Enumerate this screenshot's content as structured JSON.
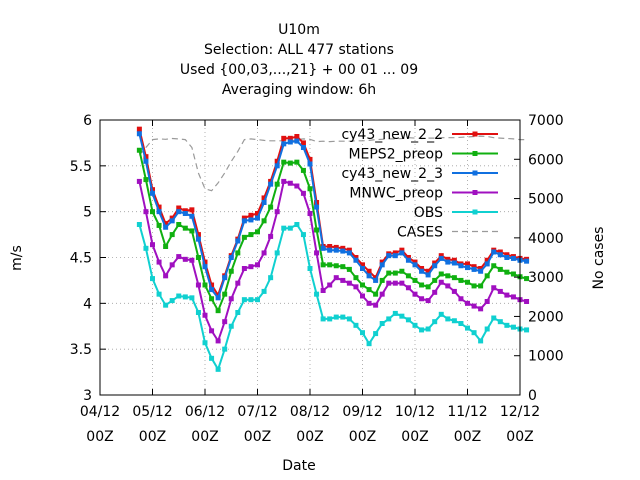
{
  "chart_data": {
    "type": "line",
    "title_lines": [
      "U10m",
      "Selection: ALL    477 stations",
      "Used {00,03,...,21} + 00 01 ... 09",
      "Averaging window:  6h"
    ],
    "xlabel": "Date",
    "ylabel": "m/s",
    "y2label": "No cases",
    "ylim": [
      3,
      6
    ],
    "y2lim": [
      0,
      7000
    ],
    "y_ticks": [
      "3",
      "3.5",
      "4",
      "4.5",
      "5",
      "5.5",
      "6"
    ],
    "y2_ticks": [
      "0",
      "1000",
      "2000",
      "3000",
      "4000",
      "5000",
      "6000",
      "7000"
    ],
    "x_tick_labels": [
      [
        "04/12",
        "00Z"
      ],
      [
        "05/12",
        "00Z"
      ],
      [
        "06/12",
        "00Z"
      ],
      [
        "07/12",
        "00Z"
      ],
      [
        "08/12",
        "00Z"
      ],
      [
        "09/12",
        "00Z"
      ],
      [
        "10/12",
        "00Z"
      ],
      [
        "11/12",
        "00Z"
      ],
      [
        "12/12",
        "00Z"
      ]
    ],
    "grid": true,
    "legend_position": "top-right",
    "x_days": [
      0.75,
      0.875,
      1.0,
      1.125,
      1.25,
      1.375,
      1.5,
      1.625,
      1.75,
      1.875,
      2.0,
      2.125,
      2.25,
      2.375,
      2.5,
      2.625,
      2.75,
      2.875,
      3.0,
      3.125,
      3.25,
      3.375,
      3.5,
      3.625,
      3.75,
      3.875,
      4.0,
      4.125,
      4.25,
      4.375,
      4.5,
      4.625,
      4.75,
      4.875,
      5.0,
      5.125,
      5.25,
      5.375,
      5.5,
      5.625,
      5.75,
      5.875,
      6.0,
      6.125,
      6.25,
      6.375,
      6.5,
      6.625,
      6.75,
      6.875,
      7.0,
      7.125,
      7.25,
      7.375,
      7.5,
      7.625,
      7.75,
      7.875,
      8.0,
      8.125
    ],
    "series": [
      {
        "name": "cy43_new_2_2",
        "color": "#e01010",
        "marker": "plus-filled",
        "values": [
          5.9,
          5.6,
          5.24,
          5.05,
          4.87,
          4.93,
          5.04,
          5.01,
          5.02,
          4.75,
          4.45,
          4.2,
          4.09,
          4.3,
          4.52,
          4.7,
          4.93,
          4.96,
          4.98,
          5.15,
          5.33,
          5.55,
          5.8,
          5.8,
          5.82,
          5.75,
          5.57,
          5.1,
          4.62,
          4.62,
          4.61,
          4.6,
          4.58,
          4.5,
          4.42,
          4.35,
          4.28,
          4.45,
          4.54,
          4.55,
          4.58,
          4.5,
          4.45,
          4.38,
          4.35,
          4.44,
          4.52,
          4.48,
          4.47,
          4.43,
          4.43,
          4.4,
          4.38,
          4.47,
          4.58,
          4.56,
          4.53,
          4.51,
          4.49,
          4.48
        ]
      },
      {
        "name": "MEPS2_preop",
        "color": "#10b010",
        "marker": "plus-filled",
        "values": [
          5.67,
          5.35,
          5.0,
          4.85,
          4.62,
          4.75,
          4.86,
          4.82,
          4.79,
          4.5,
          4.2,
          4.05,
          3.92,
          4.1,
          4.35,
          4.55,
          4.72,
          4.75,
          4.78,
          4.9,
          5.05,
          5.3,
          5.54,
          5.53,
          5.54,
          5.45,
          5.25,
          4.8,
          4.42,
          4.42,
          4.41,
          4.4,
          4.37,
          4.28,
          4.2,
          4.15,
          4.1,
          4.25,
          4.33,
          4.33,
          4.35,
          4.3,
          4.25,
          4.2,
          4.18,
          4.25,
          4.32,
          4.3,
          4.28,
          4.25,
          4.23,
          4.19,
          4.19,
          4.3,
          4.41,
          4.37,
          4.34,
          4.32,
          4.29,
          4.27
        ]
      },
      {
        "name": "cy43_new_2_3",
        "color": "#1070e0",
        "marker": "plus-filled",
        "values": [
          5.85,
          5.55,
          5.2,
          5.0,
          4.83,
          4.9,
          5.0,
          4.98,
          4.95,
          4.7,
          4.4,
          4.15,
          4.06,
          4.28,
          4.5,
          4.68,
          4.9,
          4.91,
          4.93,
          5.1,
          5.3,
          5.5,
          5.74,
          5.76,
          5.77,
          5.7,
          5.52,
          5.05,
          4.6,
          4.58,
          4.58,
          4.57,
          4.55,
          4.47,
          4.38,
          4.3,
          4.25,
          4.42,
          4.52,
          4.52,
          4.55,
          4.47,
          4.42,
          4.35,
          4.31,
          4.41,
          4.49,
          4.45,
          4.44,
          4.41,
          4.39,
          4.37,
          4.35,
          4.43,
          4.56,
          4.53,
          4.5,
          4.49,
          4.47,
          4.46
        ]
      },
      {
        "name": "MNWC_preop",
        "color": "#a010c0",
        "marker": "plus-filled",
        "values": [
          5.33,
          5.0,
          4.64,
          4.45,
          4.3,
          4.42,
          4.51,
          4.48,
          4.47,
          4.2,
          3.87,
          3.7,
          3.59,
          3.8,
          4.05,
          4.22,
          4.38,
          4.4,
          4.42,
          4.55,
          4.73,
          5.0,
          5.33,
          5.31,
          5.28,
          5.2,
          4.98,
          4.55,
          4.14,
          4.2,
          4.28,
          4.25,
          4.22,
          4.18,
          4.08,
          4.0,
          3.98,
          4.1,
          4.22,
          4.22,
          4.22,
          4.17,
          4.1,
          4.05,
          4.03,
          4.12,
          4.23,
          4.19,
          4.13,
          4.05,
          4.0,
          3.97,
          3.94,
          4.02,
          4.17,
          4.13,
          4.09,
          4.07,
          4.04,
          4.02
        ]
      },
      {
        "name": "OBS",
        "color": "#10d0d0",
        "marker": "plus-filled",
        "values": [
          4.86,
          4.6,
          4.27,
          4.1,
          3.98,
          4.03,
          4.08,
          4.07,
          4.06,
          3.9,
          3.57,
          3.4,
          3.28,
          3.5,
          3.75,
          3.9,
          4.04,
          4.04,
          4.04,
          4.13,
          4.28,
          4.55,
          4.82,
          4.82,
          4.86,
          4.75,
          4.38,
          4.1,
          3.83,
          3.83,
          3.85,
          3.85,
          3.83,
          3.76,
          3.68,
          3.56,
          3.67,
          3.78,
          3.83,
          3.89,
          3.86,
          3.82,
          3.76,
          3.71,
          3.72,
          3.8,
          3.88,
          3.83,
          3.81,
          3.78,
          3.73,
          3.68,
          3.59,
          3.72,
          3.84,
          3.8,
          3.76,
          3.74,
          3.72,
          3.71
        ]
      },
      {
        "name": "CASES",
        "color": "#9a9a9a",
        "marker": "none",
        "axis": "y2",
        "values": [
          6100,
          6300,
          6500,
          6520,
          6510,
          6530,
          6520,
          6500,
          6300,
          5650,
          5250,
          5200,
          5400,
          5650,
          5950,
          6200,
          6500,
          6520,
          6500,
          6480,
          6470,
          6470,
          6470,
          6460,
          6500,
          6520,
          6510,
          6450,
          6460,
          6450,
          6460,
          6460,
          6460,
          6470,
          6470,
          6480,
          6500,
          6510,
          6520,
          6520,
          6530,
          6550,
          6540,
          6530,
          6540,
          6540,
          6550,
          6550,
          6550,
          6560,
          6570,
          6580,
          6590,
          6580,
          6550,
          6540,
          6530,
          6520,
          6500,
          6500
        ]
      }
    ]
  }
}
